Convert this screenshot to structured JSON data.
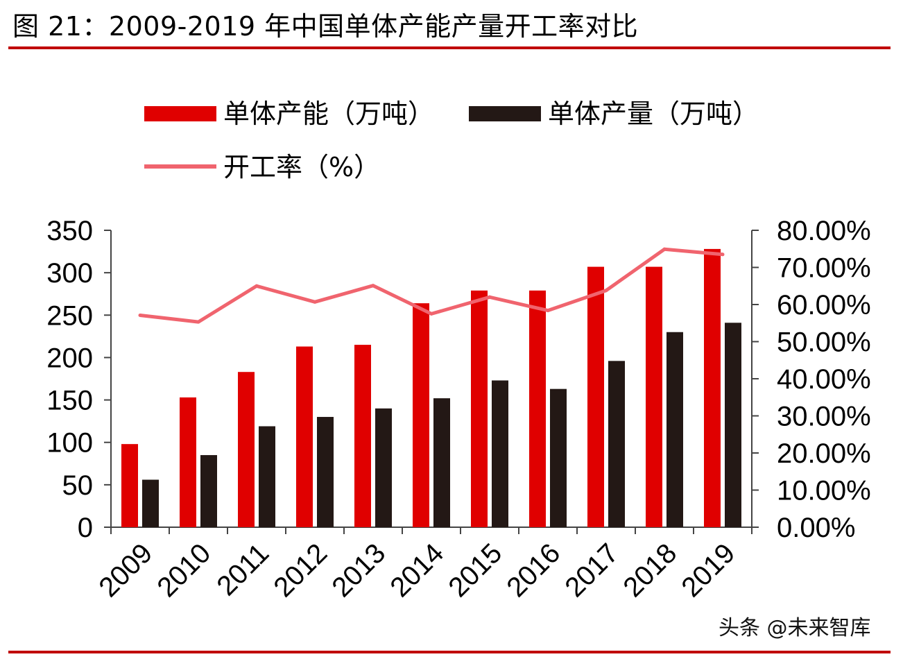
{
  "figure": {
    "title": "图 21：2009-2019 年中国单体产能产量开工率对比",
    "watermark": "头条 @未来智库"
  },
  "colors": {
    "capacity": "#e00000",
    "output": "#231815",
    "rate": "#f0646e",
    "rule": "#c00000"
  },
  "chart_data": {
    "type": "bar",
    "categories": [
      "2009",
      "2010",
      "2011",
      "2012",
      "2013",
      "2014",
      "2015",
      "2016",
      "2017",
      "2018",
      "2019"
    ],
    "series": [
      {
        "name": "单体产能（万吨）",
        "type": "bar",
        "axis": "left",
        "values": [
          98,
          153,
          183,
          213,
          215,
          264,
          279,
          279,
          307,
          307,
          328
        ]
      },
      {
        "name": "单体产量（万吨）",
        "type": "bar",
        "axis": "left",
        "values": [
          56,
          85,
          119,
          130,
          140,
          152,
          173,
          163,
          196,
          230,
          241
        ]
      },
      {
        "name": "开工率（%）",
        "type": "line",
        "axis": "right",
        "values": [
          57.1,
          55.3,
          65.0,
          60.7,
          65.1,
          57.5,
          62.0,
          58.4,
          63.8,
          74.9,
          73.5
        ]
      }
    ],
    "ylim": [
      0,
      350
    ],
    "yticks": [
      "350",
      "300",
      "250",
      "200",
      "150",
      "100",
      "50",
      "0"
    ],
    "y2lim": [
      0,
      80
    ],
    "y2ticks": [
      "80.00%",
      "70.00%",
      "60.00%",
      "50.00%",
      "40.00%",
      "30.00%",
      "20.00%",
      "10.00%",
      "0.00%"
    ],
    "legend_position": "top",
    "grid": false
  }
}
